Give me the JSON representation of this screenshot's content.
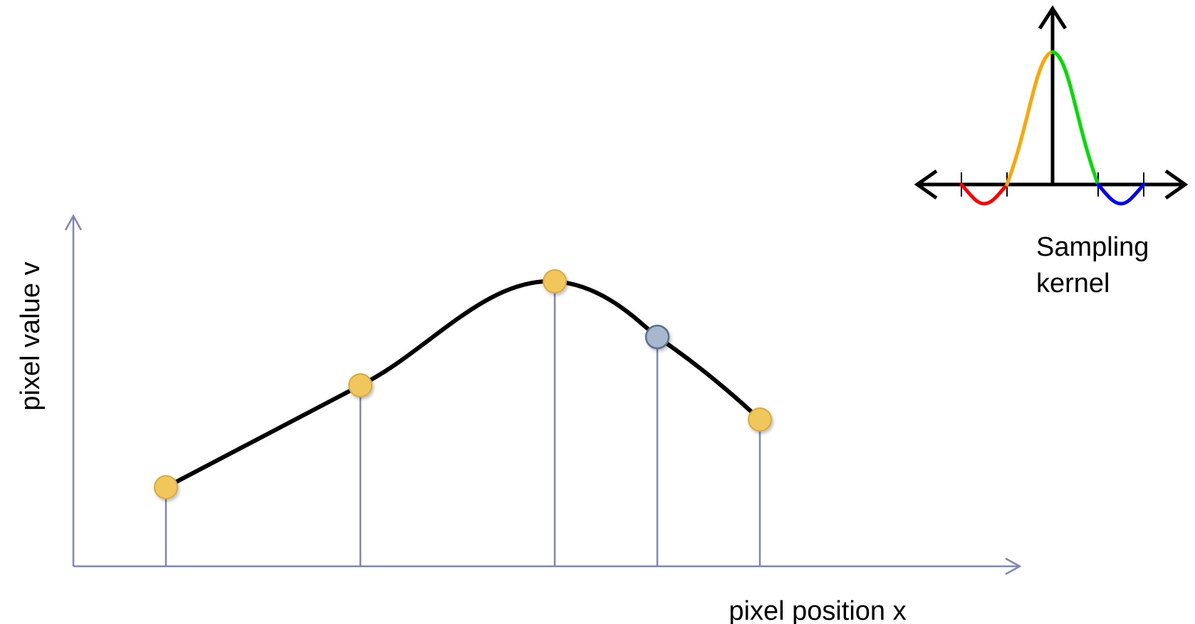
{
  "labels": {
    "y_axis": "pixel value v",
    "x_axis": "pixel position x",
    "kernel_line1": "Sampling",
    "kernel_line2": "kernel"
  },
  "colors": {
    "axis": "#7f86b3",
    "curve": "#000000",
    "sample_fill": "#f1c75c",
    "sample_stroke": "#d8a93c",
    "interp_fill": "#a7b7cd",
    "interp_stroke": "#5b6f8c",
    "kernel_axis": "#000000",
    "kernel_red": "#ff0000",
    "kernel_orange": "#ffa500",
    "kernel_green": "#00dd00",
    "kernel_blue": "#0000ff"
  }
}
